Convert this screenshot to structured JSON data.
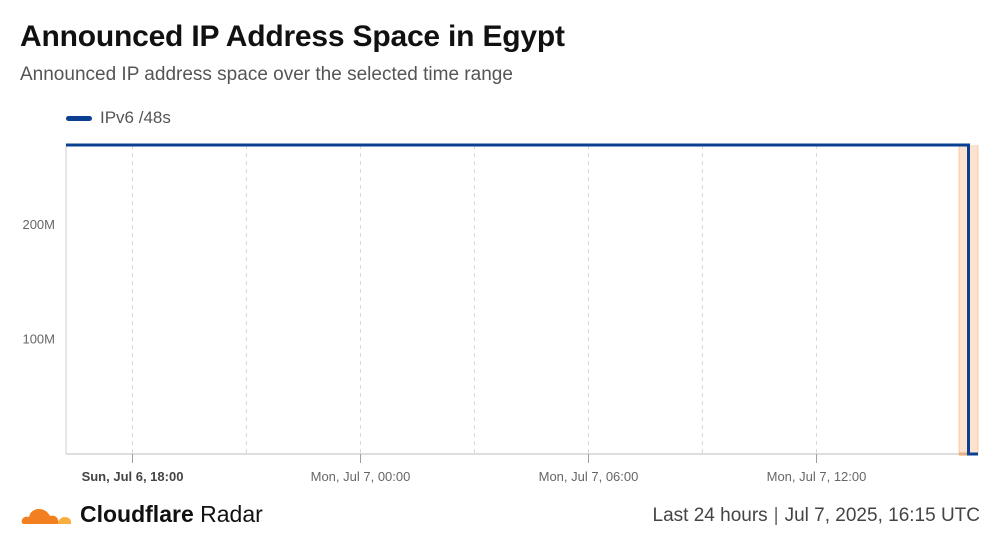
{
  "header": {
    "title": "Announced IP Address Space in Egypt",
    "subtitle": "Announced IP address space over the selected time range"
  },
  "legend": {
    "items": [
      {
        "label": "IPv6 /48s",
        "color": "#0a3f91"
      }
    ]
  },
  "chart_data": {
    "type": "line",
    "title": "Announced IP Address Space in Egypt",
    "subtitle": "Announced IP address space over the selected time range",
    "series": [
      {
        "name": "IPv6 /48s",
        "color": "#0a3f91",
        "x": [
          "2025-07-06 16:15",
          "2025-07-07 15:45",
          "2025-07-07 16:00",
          "2025-07-07 16:15"
        ],
        "values": [
          270000000,
          270000000,
          0,
          0
        ]
      }
    ],
    "xlim": [
      "2025-07-06 16:15",
      "2025-07-07 16:15"
    ],
    "ylim": [
      0,
      270000000
    ],
    "x_ticks": [
      {
        "label": "Sun, Jul 6, 18:00",
        "value": "2025-07-06 18:00",
        "bold": true
      },
      {
        "label": "Mon, Jul 7, 00:00",
        "value": "2025-07-07 00:00",
        "bold": false
      },
      {
        "label": "Mon, Jul 7, 06:00",
        "value": "2025-07-07 06:00",
        "bold": false
      },
      {
        "label": "Mon, Jul 7, 12:00",
        "value": "2025-07-07 12:00",
        "bold": false
      }
    ],
    "x_minor_gridlines": [
      "2025-07-06 21:00",
      "2025-07-07 03:00",
      "2025-07-07 09:00"
    ],
    "y_ticks": [
      {
        "label": "100M",
        "value": 100000000
      },
      {
        "label": "200M",
        "value": 200000000
      }
    ],
    "grid": true,
    "highlight": {
      "from": "2025-07-07 15:45",
      "to": "2025-07-07 16:15",
      "fill": "#fbe3cf",
      "stroke": "#f6a65f"
    },
    "legend_position": "top-left"
  },
  "footer": {
    "brand_bold": "Cloudflare",
    "brand_regular": "Radar",
    "time_range": "Last 24 hours",
    "timestamp": "Jul 7, 2025, 16:15 UTC",
    "logo_color": "#f38020",
    "logo_color_light": "#faae40"
  }
}
